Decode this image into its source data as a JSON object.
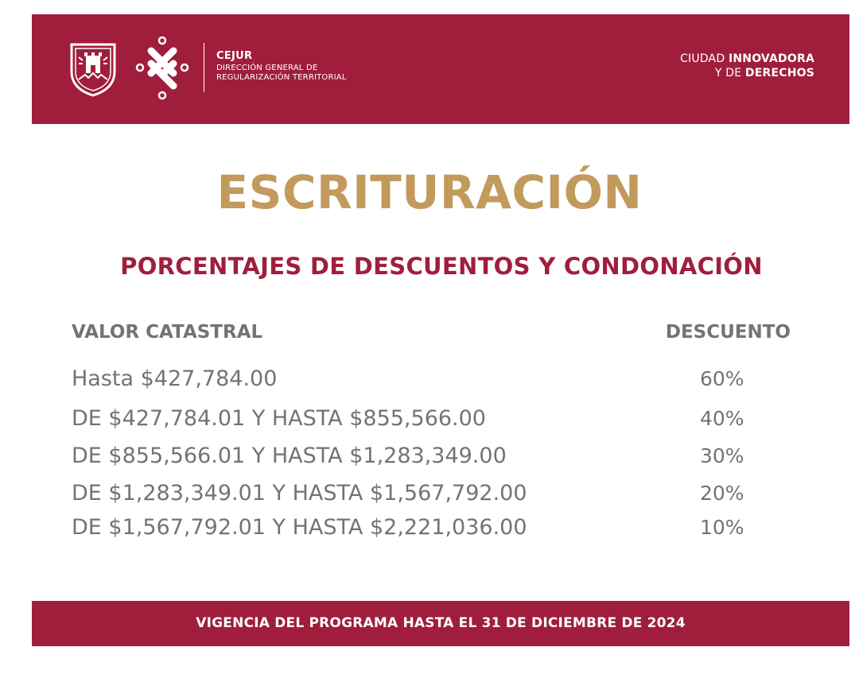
{
  "header": {
    "org_name": "CEJUR",
    "org_line1": "DIRECCIÓN GENERAL DE",
    "org_line2": "REGULARIZACIÓN TERRITORIAL",
    "slogan_line1_prefix": "CIUDAD ",
    "slogan_line1_bold": "INNOVADORA",
    "slogan_line2_prefix": "Y DE ",
    "slogan_line2_bold": "DERECHOS",
    "logos": [
      "coat-of-arms-icon",
      "cejur-emblem-icon"
    ]
  },
  "title": "ESCRITURACIÓN",
  "subtitle": "PORCENTAJES DE DESCUENTOS Y CONDONACIÓN",
  "table": {
    "headers": {
      "value": "VALOR CATASTRAL",
      "discount": "DESCUENTO"
    },
    "rows": [
      {
        "range": "Hasta $427,784.00",
        "discount": "60%"
      },
      {
        "range": "DE $427,784.01 Y HASTA $855,566.00",
        "discount": "40%"
      },
      {
        "range": "DE $855,566.01 Y HASTA $1,283,349.00",
        "discount": "30%"
      },
      {
        "range": "DE $1,283,349.01 Y HASTA $1,567,792.00",
        "discount": "20%"
      },
      {
        "range": "DE $1,567,792.01 Y HASTA $2,221,036.00",
        "discount": "10%"
      }
    ]
  },
  "footer": {
    "text": "VIGENCIA DEL PROGRAMA HASTA EL 31 DE DICIEMBRE DE 2024"
  },
  "colors": {
    "brand_red": "#a01e3c",
    "gold": "#c29a5c",
    "text_gray": "#737373"
  }
}
